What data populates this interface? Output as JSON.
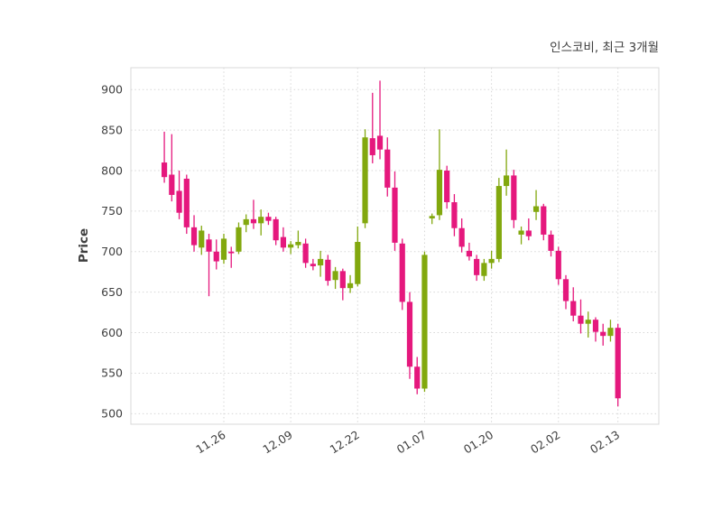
{
  "title": "인스코비, 최근 3개월",
  "colors": {
    "up": "#82a80e",
    "down": "#e5187d",
    "grid": "#d7d7d7",
    "border": "#d9d9d9",
    "text": "#3f3f3f",
    "background": "#ffffff"
  },
  "chart_data": {
    "type": "candlestick",
    "title": "인스코비, 최근 3개월",
    "ylabel": "Price",
    "ylim": [
      487,
      927
    ],
    "xlim": [
      -4.5,
      66.5
    ],
    "grid": true,
    "yticks": [
      500,
      550,
      600,
      650,
      700,
      750,
      800,
      850,
      900
    ],
    "xtick_labels": [
      "11.26",
      "12.09",
      "12.22",
      "01.07",
      "01.20",
      "02.02",
      "02.13"
    ],
    "xtick_indices": [
      8,
      17,
      26,
      35,
      44,
      53,
      61
    ],
    "candles": [
      [
        810,
        848,
        785,
        792
      ],
      [
        795,
        845,
        762,
        770
      ],
      [
        775,
        800,
        740,
        748
      ],
      [
        790,
        795,
        722,
        730
      ],
      [
        730,
        745,
        700,
        708
      ],
      [
        705,
        732,
        696,
        726
      ],
      [
        715,
        722,
        645,
        700
      ],
      [
        700,
        715,
        678,
        688
      ],
      [
        690,
        722,
        685,
        716
      ],
      [
        700,
        706,
        680,
        698
      ],
      [
        700,
        736,
        697,
        730
      ],
      [
        733,
        746,
        724,
        740
      ],
      [
        740,
        764,
        728,
        735
      ],
      [
        735,
        752,
        720,
        743
      ],
      [
        743,
        748,
        733,
        738
      ],
      [
        740,
        743,
        708,
        714
      ],
      [
        718,
        730,
        700,
        705
      ],
      [
        705,
        713,
        697,
        709
      ],
      [
        708,
        726,
        704,
        712
      ],
      [
        710,
        716,
        680,
        686
      ],
      [
        685,
        691,
        677,
        682
      ],
      [
        683,
        701,
        669,
        691
      ],
      [
        690,
        696,
        658,
        664
      ],
      [
        665,
        681,
        654,
        676
      ],
      [
        676,
        679,
        640,
        655
      ],
      [
        655,
        671,
        649,
        661
      ],
      [
        660,
        731,
        657,
        712
      ],
      [
        735,
        851,
        729,
        841
      ],
      [
        840,
        896,
        809,
        819
      ],
      [
        843,
        911,
        814,
        826
      ],
      [
        826,
        841,
        768,
        779
      ],
      [
        779,
        799,
        701,
        711
      ],
      [
        710,
        716,
        628,
        638
      ],
      [
        638,
        650,
        543,
        558
      ],
      [
        558,
        570,
        524,
        531
      ],
      [
        531,
        700,
        527,
        696
      ],
      [
        741,
        747,
        734,
        744
      ],
      [
        745,
        851,
        739,
        801
      ],
      [
        800,
        806,
        753,
        761
      ],
      [
        761,
        771,
        719,
        729
      ],
      [
        729,
        741,
        699,
        706
      ],
      [
        701,
        711,
        689,
        694
      ],
      [
        691,
        696,
        664,
        671
      ],
      [
        670,
        691,
        664,
        686
      ],
      [
        686,
        701,
        679,
        691
      ],
      [
        691,
        791,
        687,
        781
      ],
      [
        781,
        826,
        769,
        794
      ],
      [
        794,
        801,
        729,
        739
      ],
      [
        721,
        731,
        709,
        726
      ],
      [
        726,
        741,
        714,
        719
      ],
      [
        749,
        776,
        739,
        756
      ],
      [
        756,
        759,
        714,
        721
      ],
      [
        721,
        726,
        694,
        701
      ],
      [
        701,
        706,
        659,
        666
      ],
      [
        666,
        671,
        629,
        639
      ],
      [
        639,
        656,
        614,
        621
      ],
      [
        621,
        641,
        599,
        611
      ],
      [
        611,
        626,
        594,
        616
      ],
      [
        616,
        619,
        589,
        601
      ],
      [
        601,
        611,
        584,
        596
      ],
      [
        596,
        616,
        589,
        606
      ],
      [
        606,
        611,
        509,
        519
      ]
    ]
  }
}
